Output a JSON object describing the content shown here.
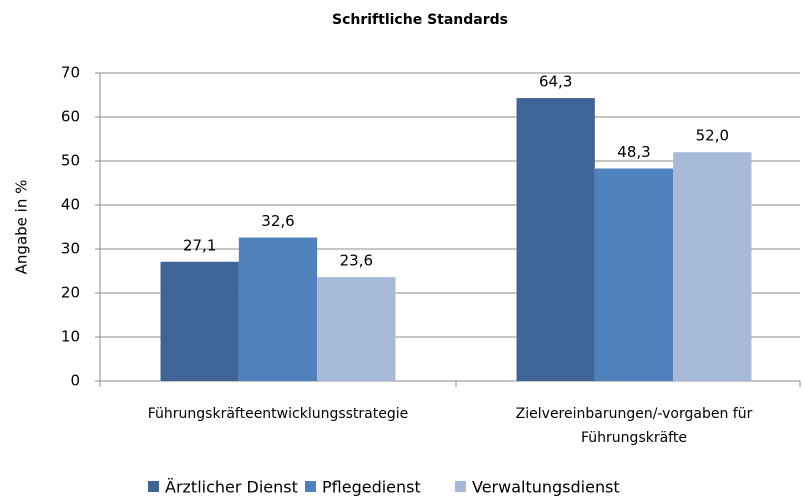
{
  "chart_data": {
    "type": "bar",
    "title": "Schriftliche Standards",
    "y_label": "Angabe in %",
    "categories": [
      "Führungskräfteentwicklungsstrategie",
      "Zielvereinbarungen/-vorgaben für Führungskräfte"
    ],
    "series": [
      {
        "name": "Ärztlicher Dienst",
        "color": "#3f6598",
        "values": [
          27.1,
          64.3
        ],
        "value_labels": [
          "27,1",
          "64,3"
        ]
      },
      {
        "name": "Pflegedienst",
        "color": "#4f81bd",
        "values": [
          32.6,
          48.3
        ],
        "value_labels": [
          "32,6",
          "48,3"
        ]
      },
      {
        "name": "Verwaltungsdienst",
        "color": "#a7b9d9",
        "values": [
          23.6,
          52.0
        ],
        "value_labels": [
          "23,6",
          "52,0"
        ]
      }
    ],
    "ylim": [
      0,
      70
    ],
    "yticks": [
      0,
      10,
      20,
      30,
      40,
      50,
      60,
      70
    ],
    "grid": true,
    "legend": "bottom"
  }
}
